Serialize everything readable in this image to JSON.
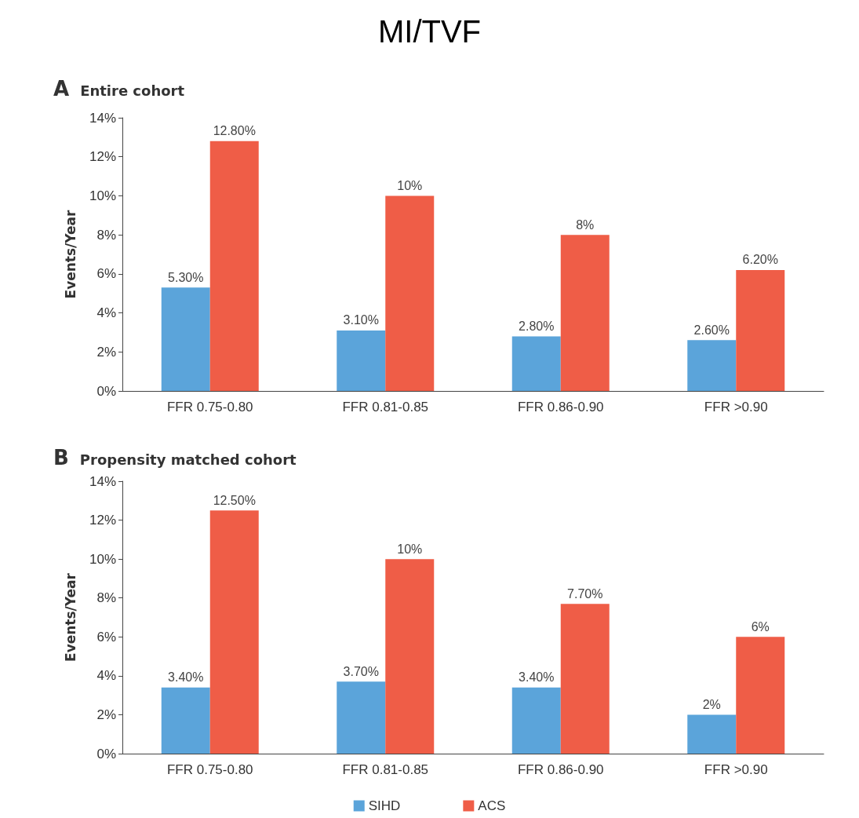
{
  "chart_data": [
    {
      "type": "bar",
      "title": "MI/TVF",
      "subtitle": "Entire cohort",
      "annotations": [
        "A"
      ],
      "ylabel": "Events/Year",
      "categories": [
        "FFR 0.75-0.80",
        "FFR 0.81-0.85",
        "FFR 0.86-0.90",
        "FFR >0.90"
      ],
      "series": [
        {
          "color": "#5ba4da",
          "values": [
            5.3,
            3.1,
            2.8,
            2.6
          ],
          "value_labels": [
            "5.30%",
            "3.10%",
            "2.80%",
            "2.60%"
          ]
        },
        {
          "color": "#ef5d47",
          "values": [
            12.8,
            10,
            8,
            6.2
          ],
          "value_labels": [
            "12.80%",
            "10%",
            "8%",
            "6.20%"
          ]
        }
      ],
      "ylim": [
        0,
        14
      ],
      "yticks": [
        {
          "value": 0,
          "label": "0%"
        },
        {
          "value": 2,
          "label": "2%"
        },
        {
          "value": 4,
          "label": "4%"
        },
        {
          "value": 6,
          "label": "6%"
        },
        {
          "value": 8,
          "label": "8%"
        },
        {
          "value": 10,
          "label": "10%"
        },
        {
          "value": 12,
          "label": "12%"
        },
        {
          "value": 14,
          "label": "14%"
        }
      ],
      "grid": false,
      "legend": false
    },
    {
      "type": "bar",
      "subtitle": "Propensity matched cohort",
      "annotations": [
        "B"
      ],
      "ylabel": "Events/Year",
      "categories": [
        "FFR 0.75-0.80",
        "FFR 0.81-0.85",
        "FFR 0.86-0.90",
        "FFR >0.90"
      ],
      "series": [
        {
          "name": "SIHD",
          "color": "#5ba4da",
          "values": [
            3.4,
            3.7,
            3.4,
            2
          ],
          "value_labels": [
            "3.40%",
            "3.70%",
            "3.40%",
            "2%"
          ]
        },
        {
          "name": "ACS",
          "color": "#ef5d47",
          "values": [
            12.5,
            10,
            7.7,
            6
          ],
          "value_labels": [
            "12.50%",
            "10%",
            "7.70%",
            "6%"
          ]
        }
      ],
      "ylim": [
        0,
        14
      ],
      "yticks": [
        {
          "value": 0,
          "label": "0%"
        },
        {
          "value": 2,
          "label": "2%"
        },
        {
          "value": 4,
          "label": "4%"
        },
        {
          "value": 6,
          "label": "6%"
        },
        {
          "value": 8,
          "label": "8%"
        },
        {
          "value": 10,
          "label": "10%"
        },
        {
          "value": 12,
          "label": "12%"
        },
        {
          "value": 14,
          "label": "14%"
        }
      ],
      "grid": false,
      "legend": "bottom"
    }
  ]
}
